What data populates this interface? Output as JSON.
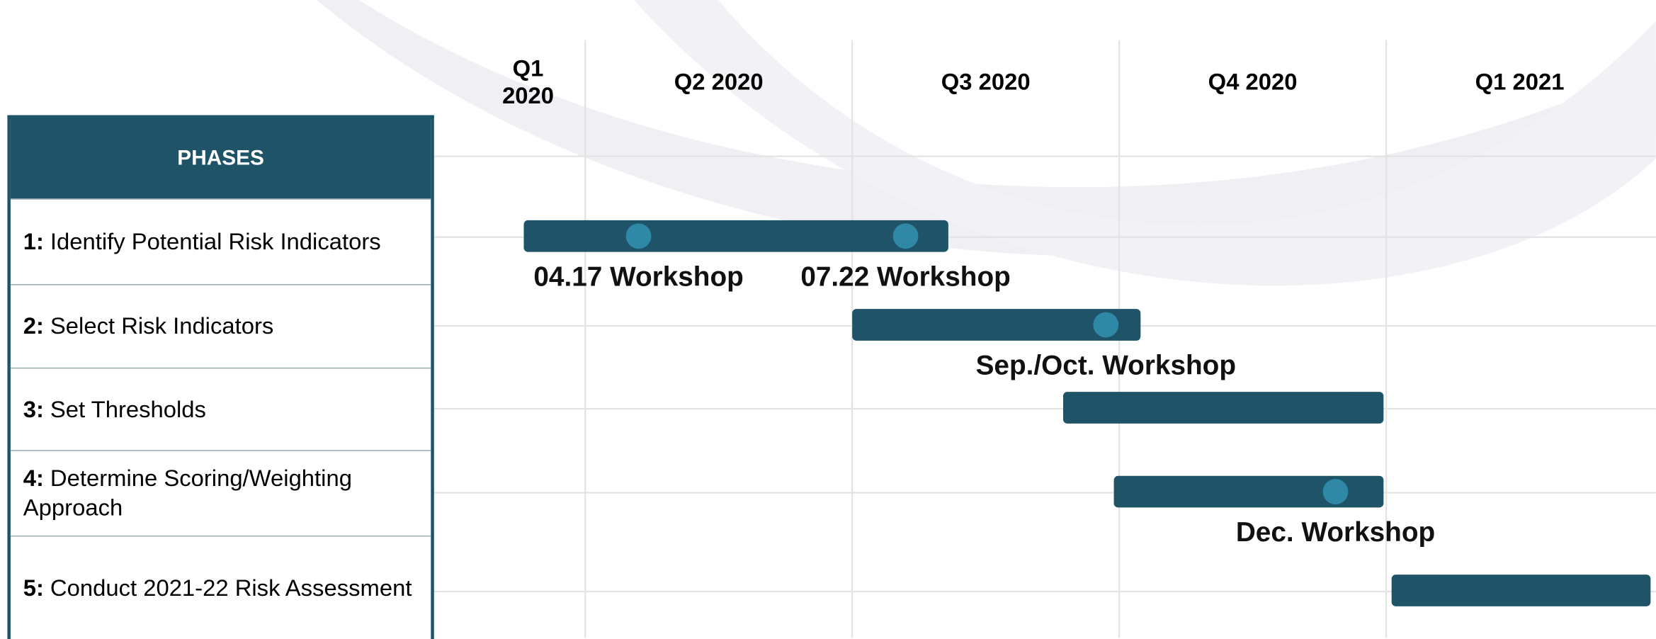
{
  "chart_data": {
    "type": "gantt",
    "header": "PHASES",
    "periods": [
      "Q1 2020",
      "Q2 2020",
      "Q3 2020",
      "Q4 2020",
      "Q1 2021"
    ],
    "xlim": [
      0.43,
      5.01
    ],
    "color": "#1f5468",
    "milestone_color": "#2f88a6",
    "tasks": [
      {
        "number": "1:",
        "name": "Identify Potential Risk Indicators",
        "start": 0.77,
        "end": 2.36,
        "milestones": [
          {
            "label": "04.17 Workshop",
            "at": 1.2
          },
          {
            "label": "07.22 Workshop",
            "at": 2.2
          }
        ]
      },
      {
        "number": "2:",
        "name": "Select Risk Indicators",
        "start": 2.0,
        "end": 3.08,
        "milestones": [
          {
            "label": "Sep./Oct. Workshop",
            "at": 2.95
          }
        ]
      },
      {
        "number": "3:",
        "name": "Set Thresholds",
        "start": 2.79,
        "end": 3.99,
        "milestones": []
      },
      {
        "number": "4:",
        "name": "Determine Scoring/Weighting Approach",
        "start": 2.98,
        "end": 3.99,
        "milestones": [
          {
            "label": "Dec. Workshop",
            "at": 3.81
          }
        ]
      },
      {
        "number": "5:",
        "name": "Conduct 2021-22 Risk Assessment",
        "start": 4.02,
        "end": 4.99,
        "milestones": []
      }
    ]
  }
}
